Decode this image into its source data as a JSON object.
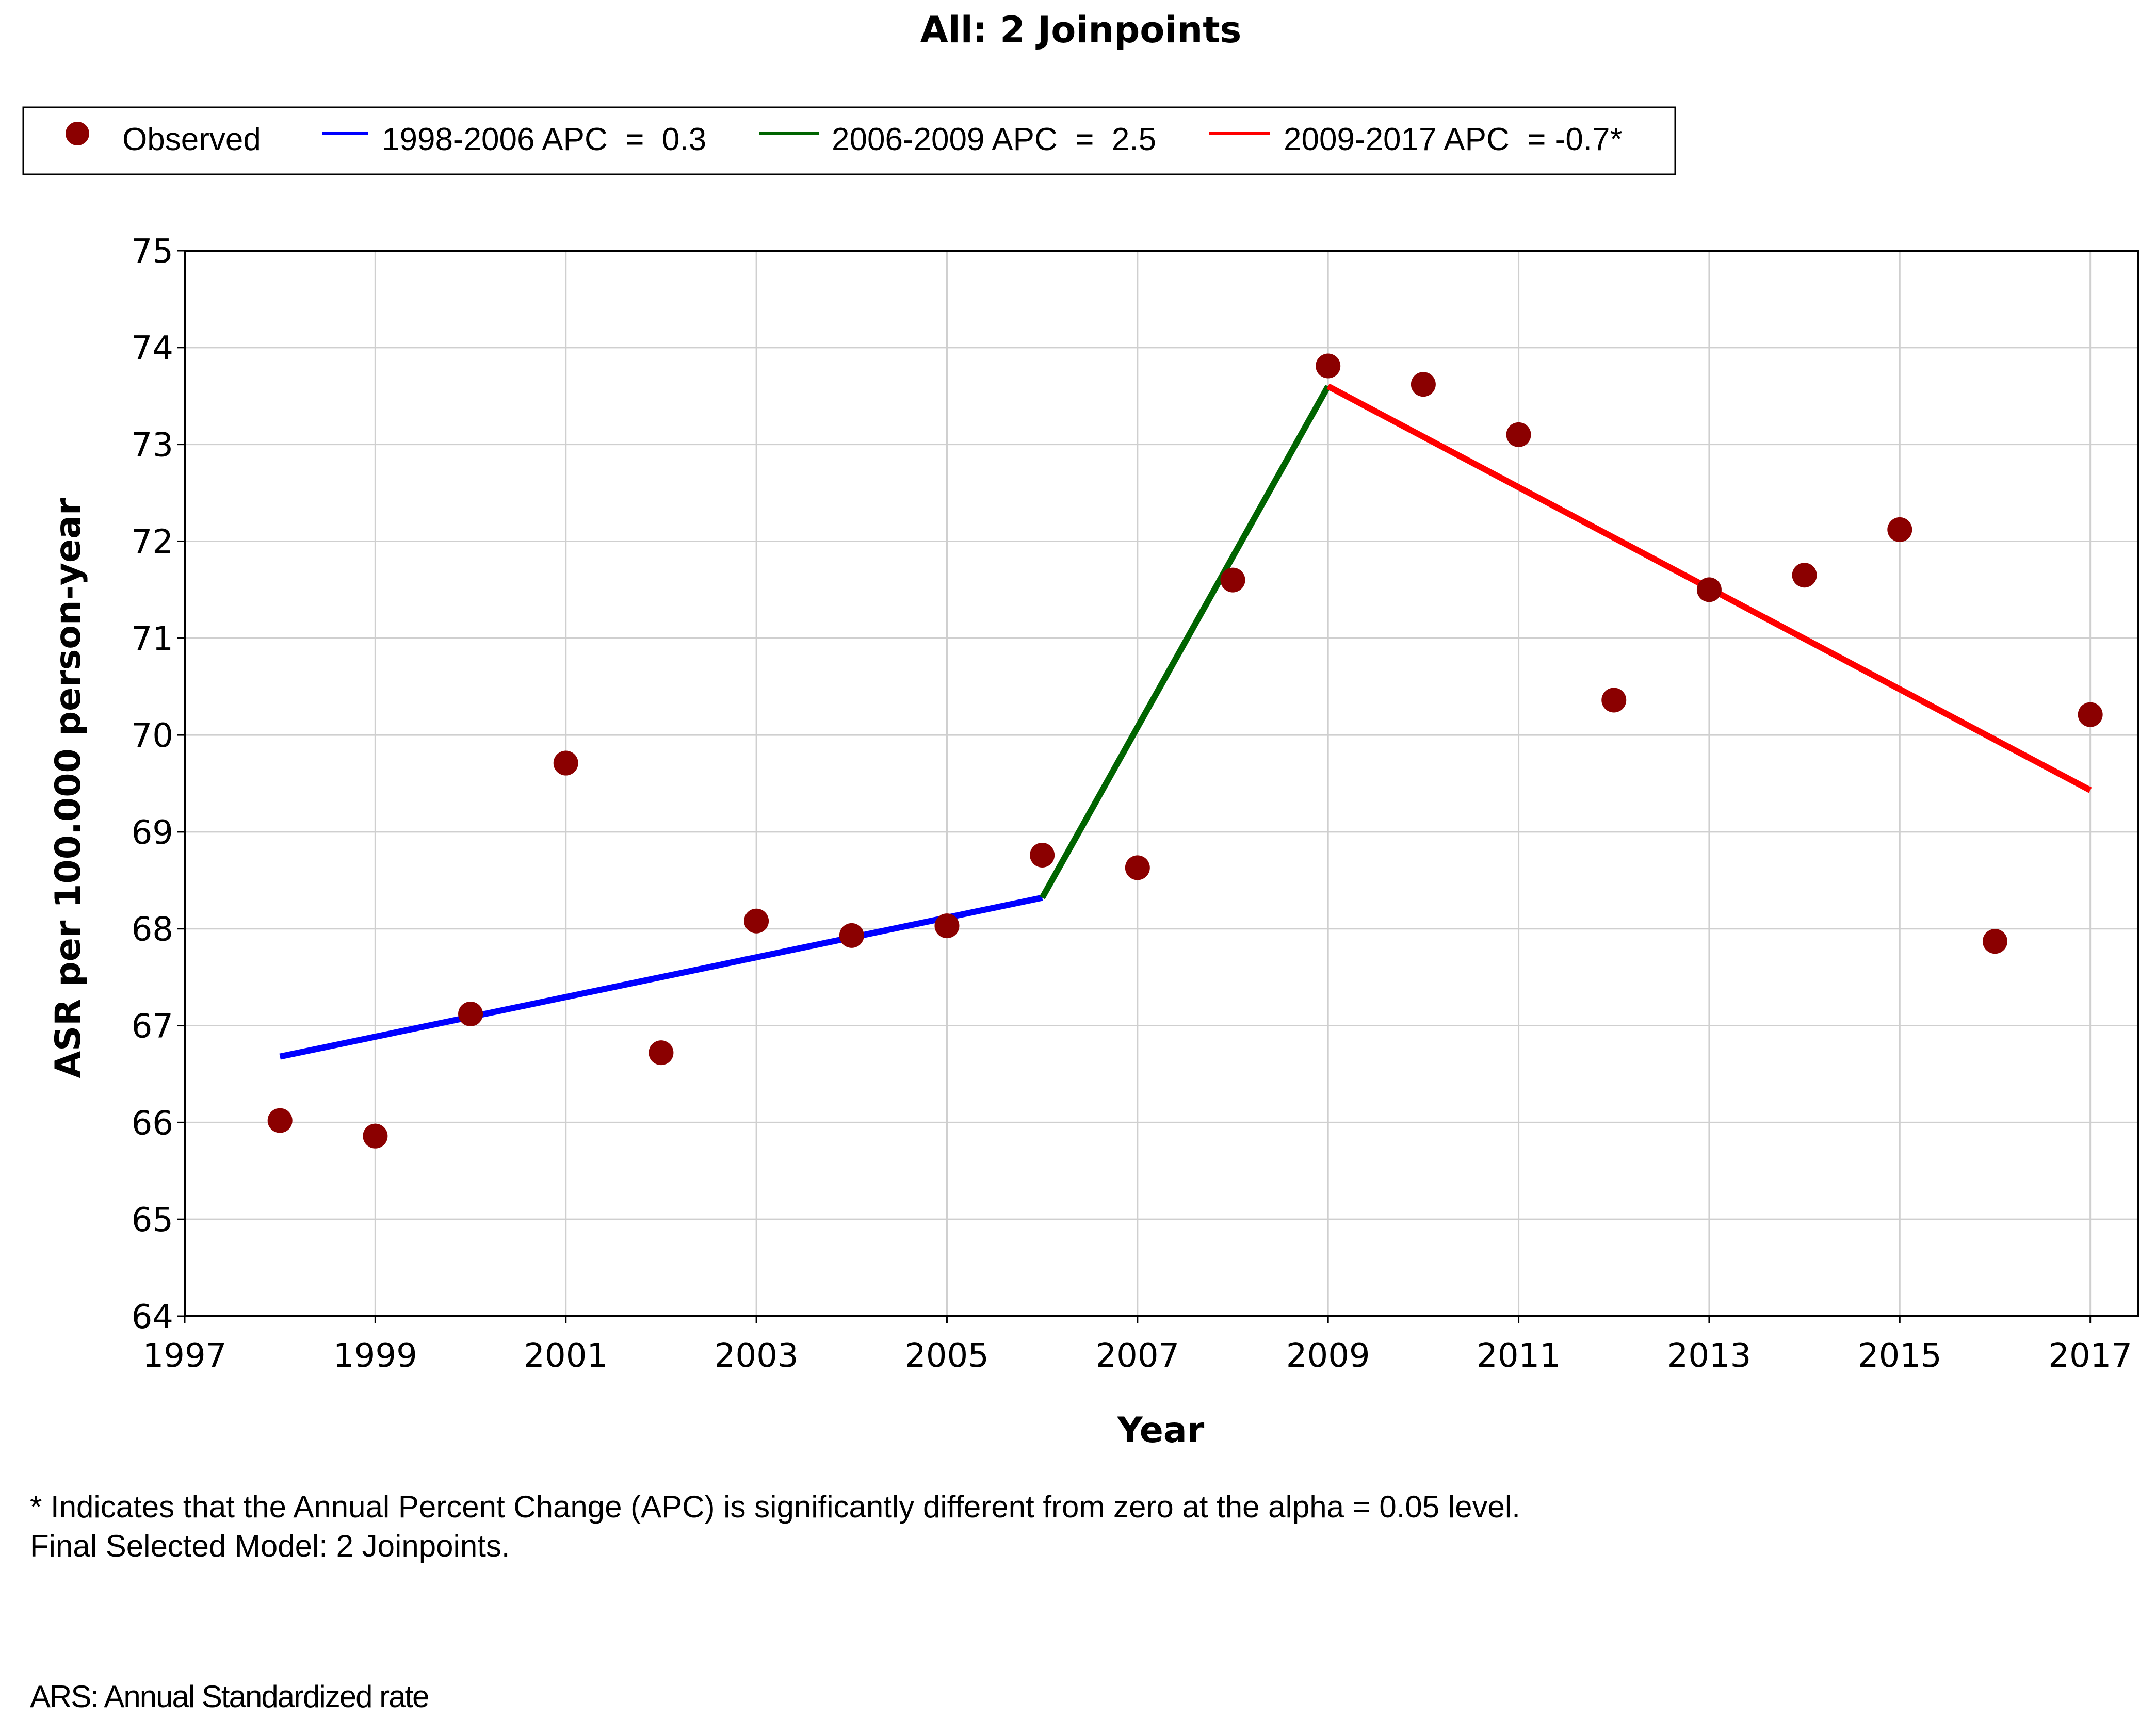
{
  "chart_data": {
    "type": "scatter",
    "title": "All: 2 Joinpoints",
    "xlabel": "Year",
    "ylabel": "ASR per 100.000 person-year",
    "xlim": [
      1997,
      2017.5
    ],
    "ylim": [
      64,
      75
    ],
    "x_ticks": [
      "1997",
      "1999",
      "2001",
      "2003",
      "2005",
      "2007",
      "2009",
      "2011",
      "2013",
      "2015",
      "2017"
    ],
    "y_ticks": [
      "64",
      "65",
      "66",
      "67",
      "68",
      "69",
      "70",
      "71",
      "72",
      "73",
      "74",
      "75"
    ],
    "grid": true,
    "legend_position": "top",
    "observed": {
      "name": "Observed",
      "color": "#8b0000",
      "x": [
        1998,
        1999,
        2000,
        2001,
        2002,
        2003,
        2004,
        2005,
        2006,
        2007,
        2008,
        2009,
        2010,
        2011,
        2012,
        2013,
        2014,
        2015,
        2016,
        2017
      ],
      "y": [
        66.02,
        65.86,
        67.12,
        69.71,
        66.72,
        68.08,
        67.93,
        68.03,
        68.76,
        68.63,
        71.6,
        73.81,
        73.62,
        73.1,
        70.36,
        71.5,
        71.65,
        72.12,
        67.87,
        70.21
      ]
    },
    "series": [
      {
        "name": "1998-2006 APC",
        "label": "1998-2006 APC  =  0.3",
        "color": "#0000ff",
        "x": [
          1998,
          2006
        ],
        "y": [
          66.68,
          68.32
        ]
      },
      {
        "name": "2006-2009 APC",
        "label": "2006-2009 APC  =  2.5",
        "color": "#006400",
        "x": [
          2006,
          2009
        ],
        "y": [
          68.32,
          73.6
        ]
      },
      {
        "name": "2009-2017 APC",
        "label": "2009-2017 APC  = -0.7*",
        "color": "#ff0000",
        "x": [
          2009,
          2017
        ],
        "y": [
          73.6,
          69.43
        ]
      }
    ]
  },
  "notes": {
    "footnote_1": "* Indicates that the Annual Percent Change (APC) is significantly different from zero at the alpha = 0.05 level.",
    "footnote_2": "Final Selected Model: 2 Joinpoints.",
    "ars_note": "ARS: Annual Standardized rate"
  }
}
